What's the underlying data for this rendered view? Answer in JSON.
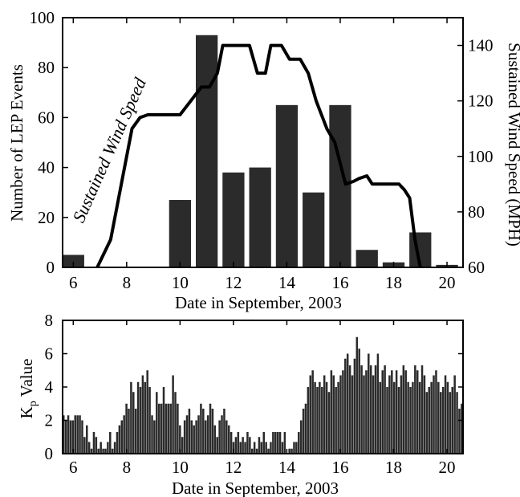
{
  "chart_data": [
    {
      "type": "bar",
      "xlabel": "Date in September, 2003",
      "ylabel": "Number of  LEP Events",
      "y2label": "Sustained Wind Speed (MPH)",
      "annotation": "Sustained Wind Speed",
      "xlim": [
        5.6,
        20.6
      ],
      "ylim": [
        0,
        100
      ],
      "y2lim": [
        60,
        150
      ],
      "xticks": [
        6,
        8,
        10,
        12,
        14,
        16,
        18,
        20
      ],
      "yticks": [
        0,
        20,
        40,
        60,
        80,
        100
      ],
      "y2ticks": [
        60,
        80,
        100,
        120,
        140
      ],
      "grid": false,
      "bar_color": "#2b2b2b",
      "series": [
        {
          "type": "bar",
          "x": [
            6,
            7,
            8,
            9,
            10,
            11,
            12,
            13,
            14,
            15,
            16,
            17,
            18,
            19,
            20
          ],
          "values": [
            5,
            0,
            0,
            0,
            27,
            93,
            38,
            40,
            65,
            30,
            65,
            7,
            2,
            14,
            1
          ]
        },
        {
          "type": "line",
          "axis": "right",
          "x": [
            6.9,
            7.4,
            7.8,
            8.2,
            8.5,
            8.8,
            9.0,
            10.0,
            10.4,
            10.8,
            11.1,
            11.4,
            11.6,
            12.0,
            12.6,
            12.9,
            13.2,
            13.4,
            13.8,
            14.1,
            14.5,
            14.8,
            15.1,
            15.5,
            15.8,
            16.2,
            16.5,
            16.7,
            17.0,
            17.2,
            17.4,
            17.7,
            18.2,
            18.4,
            18.6,
            18.8,
            18.9,
            19.0
          ],
          "values": [
            60,
            70,
            90,
            110,
            114,
            115,
            115,
            115,
            120,
            125,
            125,
            130,
            140,
            140,
            140,
            130,
            130,
            140,
            140,
            135,
            135,
            130,
            120,
            110,
            105,
            90,
            91,
            92,
            93,
            90,
            90,
            90,
            90,
            88,
            85,
            70,
            65,
            60
          ]
        }
      ]
    },
    {
      "type": "bar",
      "xlabel": "Date in September, 2003",
      "ylabel_main": "K",
      "ylabel_sub": "p",
      "ylabel_rest": " Value",
      "xlim": [
        5.6,
        20.6
      ],
      "ylim": [
        0,
        8
      ],
      "xticks": [
        6,
        8,
        10,
        12,
        14,
        16,
        18,
        20
      ],
      "yticks": [
        0,
        2,
        4,
        6,
        8
      ],
      "grid": false,
      "bar_color": "#2b2b2b",
      "values": [
        2.3,
        2.0,
        2.3,
        2.0,
        2.0,
        2.3,
        2.3,
        2.3,
        2.0,
        1.0,
        1.7,
        0.7,
        0.3,
        1.3,
        1.0,
        0.3,
        0.7,
        0.3,
        0.3,
        0.7,
        1.3,
        0.3,
        0.7,
        1.3,
        1.7,
        2.0,
        2.3,
        3.0,
        2.7,
        4.3,
        3.7,
        2.7,
        4.3,
        4.0,
        4.7,
        4.3,
        5.0,
        4.0,
        2.3,
        2.0,
        3.7,
        3.0,
        3.0,
        4.0,
        3.0,
        3.0,
        3.0,
        4.7,
        3.7,
        3.0,
        1.7,
        1.0,
        2.0,
        2.3,
        2.7,
        2.0,
        1.7,
        2.0,
        2.3,
        3.0,
        2.7,
        2.0,
        2.3,
        3.0,
        2.7,
        1.7,
        1.0,
        2.0,
        2.3,
        2.7,
        2.0,
        1.7,
        1.3,
        0.7,
        1.0,
        1.3,
        0.7,
        1.0,
        0.7,
        1.3,
        1.0,
        0.3,
        0.7,
        0.3,
        1.0,
        0.7,
        1.3,
        0.7,
        0.3,
        0.7,
        1.3,
        1.3,
        1.3,
        1.3,
        0.7,
        1.3,
        0.0,
        0.3,
        0.3,
        0.7,
        0.7,
        1.3,
        2.0,
        2.7,
        3.0,
        4.0,
        4.7,
        5.0,
        4.3,
        4.0,
        4.3,
        4.0,
        4.7,
        4.3,
        3.7,
        5.0,
        4.7,
        4.0,
        4.3,
        4.7,
        5.0,
        5.7,
        6.0,
        5.3,
        4.7,
        5.7,
        7.0,
        6.3,
        5.3,
        4.7,
        5.0,
        6.0,
        5.3,
        4.7,
        5.3,
        6.0,
        4.3,
        5.0,
        5.3,
        4.0,
        4.7,
        5.0,
        4.3,
        5.0,
        4.0,
        4.7,
        5.3,
        5.0,
        4.3,
        4.0,
        4.3,
        5.3,
        5.0,
        4.3,
        5.3,
        4.7,
        3.7,
        4.0,
        4.3,
        4.7,
        5.0,
        4.3,
        3.7,
        4.0,
        4.7,
        4.3,
        3.7,
        4.0,
        4.7,
        3.7,
        2.7,
        3.0
      ]
    }
  ]
}
